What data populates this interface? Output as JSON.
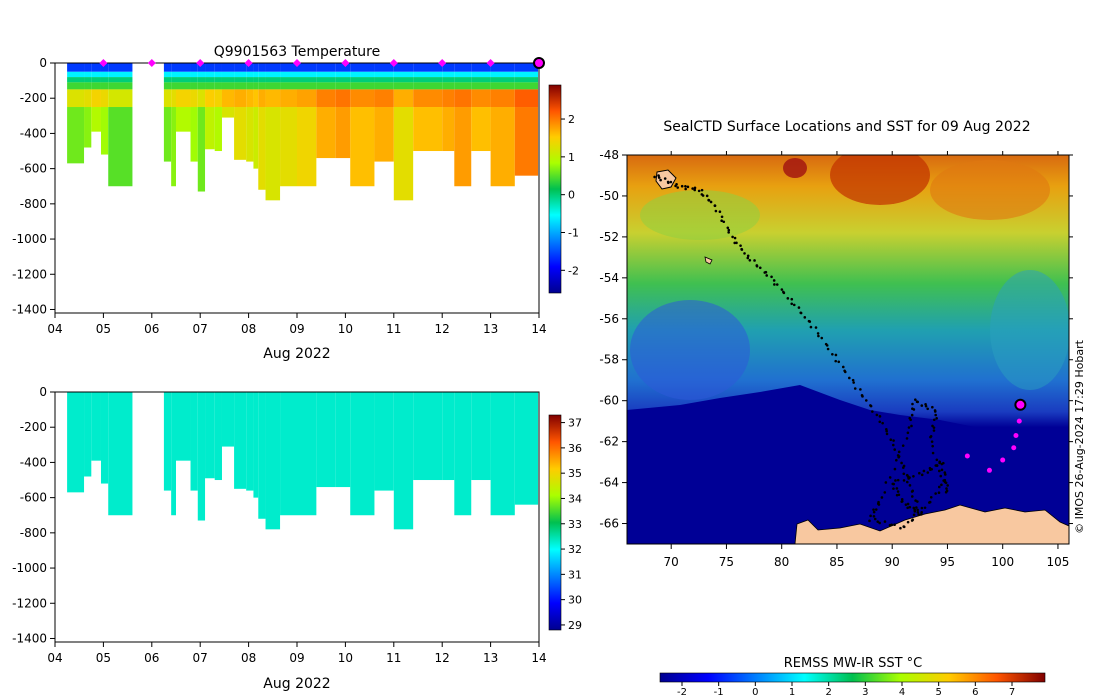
{
  "chart_data": [
    {
      "type": "heatmap",
      "id": "temperature-section",
      "title": "Q9901563  Temperature",
      "xlabel": "Aug 2022",
      "ylabel": "",
      "xlim": [
        4,
        14
      ],
      "ylim": [
        -1420,
        0
      ],
      "x_ticks": [
        "04",
        "05",
        "06",
        "07",
        "08",
        "09",
        "10",
        "11",
        "12",
        "13",
        "14"
      ],
      "y_ticks": [
        "0",
        "-200",
        "-400",
        "-600",
        "-800",
        "-1000",
        "-1200",
        "-1400"
      ],
      "colorbar": {
        "min": -2.6,
        "max": 2.9,
        "ticks": [
          "2",
          "1",
          "0",
          "-1",
          "-2"
        ]
      },
      "surface_markers_day": [
        5,
        6,
        7,
        8,
        9,
        10,
        11,
        12,
        13
      ],
      "current_marker_day": 14,
      "profiles": [
        {
          "day": 4.25,
          "depth": 570,
          "deep_temp": 0.6
        },
        {
          "day": 4.6,
          "depth": 480,
          "deep_temp": 0.7
        },
        {
          "day": 4.75,
          "depth": 390,
          "deep_temp": 0.9
        },
        {
          "day": 4.95,
          "depth": 520,
          "deep_temp": 0.8
        },
        {
          "day": 5.1,
          "depth": 700,
          "deep_temp": 0.5
        },
        {
          "day": 6.25,
          "depth": 560,
          "deep_temp": 0.6
        },
        {
          "day": 6.4,
          "depth": 700,
          "deep_temp": 0.7
        },
        {
          "day": 6.5,
          "depth": 390,
          "deep_temp": 0.9
        },
        {
          "day": 6.8,
          "depth": 560,
          "deep_temp": 0.8
        },
        {
          "day": 6.95,
          "depth": 730,
          "deep_temp": 0.6
        },
        {
          "day": 7.1,
          "depth": 490,
          "deep_temp": 1.0
        },
        {
          "day": 7.3,
          "depth": 500,
          "deep_temp": 0.9
        },
        {
          "day": 7.45,
          "depth": 310,
          "deep_temp": 1.2
        },
        {
          "day": 7.7,
          "depth": 550,
          "deep_temp": 1.3
        },
        {
          "day": 7.95,
          "depth": 560,
          "deep_temp": 1.2
        },
        {
          "day": 8.1,
          "depth": 600,
          "deep_temp": 1.1
        },
        {
          "day": 8.2,
          "depth": 720,
          "deep_temp": 1.3
        },
        {
          "day": 8.35,
          "depth": 780,
          "deep_temp": 1.2
        },
        {
          "day": 8.65,
          "depth": 700,
          "deep_temp": 1.3
        },
        {
          "day": 9.0,
          "depth": 700,
          "deep_temp": 1.4
        },
        {
          "day": 9.4,
          "depth": 540,
          "deep_temp": 1.7
        },
        {
          "day": 9.8,
          "depth": 540,
          "deep_temp": 1.8
        },
        {
          "day": 10.1,
          "depth": 700,
          "deep_temp": 1.6
        },
        {
          "day": 10.6,
          "depth": 560,
          "deep_temp": 1.7
        },
        {
          "day": 11.0,
          "depth": 780,
          "deep_temp": 1.3
        },
        {
          "day": 11.4,
          "depth": 500,
          "deep_temp": 1.6
        },
        {
          "day": 12.0,
          "depth": 500,
          "deep_temp": 1.7
        },
        {
          "day": 12.25,
          "depth": 700,
          "deep_temp": 1.8
        },
        {
          "day": 12.6,
          "depth": 500,
          "deep_temp": 1.6
        },
        {
          "day": 13.0,
          "depth": 700,
          "deep_temp": 1.7
        },
        {
          "day": 13.5,
          "depth": 640,
          "deep_temp": 2.0
        }
      ],
      "gap": [
        5.6,
        6.15
      ]
    },
    {
      "type": "heatmap",
      "id": "salinity-section",
      "title": "",
      "xlabel": "Aug 2022",
      "ylabel": "",
      "xlim": [
        4,
        14
      ],
      "ylim": [
        -1420,
        0
      ],
      "x_ticks": [
        "04",
        "05",
        "06",
        "07",
        "08",
        "09",
        "10",
        "11",
        "12",
        "13",
        "14"
      ],
      "y_ticks": [
        "0",
        "-200",
        "-400",
        "-600",
        "-800",
        "-1000",
        "-1200",
        "-1400"
      ],
      "colorbar": {
        "min": 28.8,
        "max": 37.3,
        "ticks": [
          "37",
          "36",
          "35",
          "34",
          "33",
          "32",
          "31",
          "30",
          "29"
        ]
      },
      "uniform_value": 32.3
    },
    {
      "type": "map",
      "id": "sst-map",
      "title": "SealCTD Surface Locations and SST for 09 Aug 2022",
      "xlim": [
        66,
        106
      ],
      "ylim": [
        -67,
        -48
      ],
      "x_ticks": [
        "70",
        "75",
        "80",
        "85",
        "90",
        "95",
        "100",
        "105"
      ],
      "y_ticks": [
        "-48",
        "-50",
        "-52",
        "-54",
        "-56",
        "-58",
        "-60",
        "-62",
        "-64",
        "-66"
      ],
      "colorbar": {
        "label": "REMSS MW-IR SST °C",
        "min": -2.6,
        "max": 7.9,
        "ticks": [
          "-2",
          "-1",
          "0",
          "1",
          "2",
          "3",
          "4",
          "5",
          "6",
          "7"
        ]
      },
      "credit": "© IMOS 26-Aug-2024 17:29 Hobart",
      "recent_track": [
        {
          "lon": 101.7,
          "lat": -60.3
        },
        {
          "lon": 101.5,
          "lat": -61.0
        },
        {
          "lon": 101.2,
          "lat": -61.7
        },
        {
          "lon": 101.0,
          "lat": -62.3
        },
        {
          "lon": 100.0,
          "lat": -62.9
        },
        {
          "lon": 98.8,
          "lat": -63.4
        },
        {
          "lon": 96.8,
          "lat": -62.7
        }
      ],
      "current_position": {
        "lon": 101.6,
        "lat": -60.2
      },
      "historic_track": [
        {
          "lon": 68.5,
          "lat": -49.0
        },
        {
          "lon": 70.5,
          "lat": -49.5
        },
        {
          "lon": 72.5,
          "lat": -49.7
        },
        {
          "lon": 74.0,
          "lat": -50.5
        },
        {
          "lon": 75.5,
          "lat": -52.0
        },
        {
          "lon": 77.0,
          "lat": -53.0
        },
        {
          "lon": 79.0,
          "lat": -54.0
        },
        {
          "lon": 81.0,
          "lat": -55.2
        },
        {
          "lon": 83.0,
          "lat": -56.5
        },
        {
          "lon": 85.0,
          "lat": -58.0
        },
        {
          "lon": 87.0,
          "lat": -59.5
        },
        {
          "lon": 89.0,
          "lat": -61.0
        },
        {
          "lon": 90.5,
          "lat": -62.5
        },
        {
          "lon": 91.5,
          "lat": -64.0
        },
        {
          "lon": 92.5,
          "lat": -65.5
        },
        {
          "lon": 91.0,
          "lat": -65.0
        },
        {
          "lon": 90.0,
          "lat": -64.0
        },
        {
          "lon": 93.0,
          "lat": -63.5
        },
        {
          "lon": 94.5,
          "lat": -63.0
        },
        {
          "lon": 95.0,
          "lat": -64.5
        },
        {
          "lon": 93.5,
          "lat": -62.0
        },
        {
          "lon": 94.0,
          "lat": -60.5
        },
        {
          "lon": 92.0,
          "lat": -60.0
        },
        {
          "lon": 91.5,
          "lat": -61.5
        },
        {
          "lon": 89.0,
          "lat": -64.8
        },
        {
          "lon": 88.0,
          "lat": -65.8
        },
        {
          "lon": 91.0,
          "lat": -66.2
        },
        {
          "lon": 93.0,
          "lat": -65.2
        },
        {
          "lon": 95.0,
          "lat": -63.8
        }
      ]
    }
  ]
}
